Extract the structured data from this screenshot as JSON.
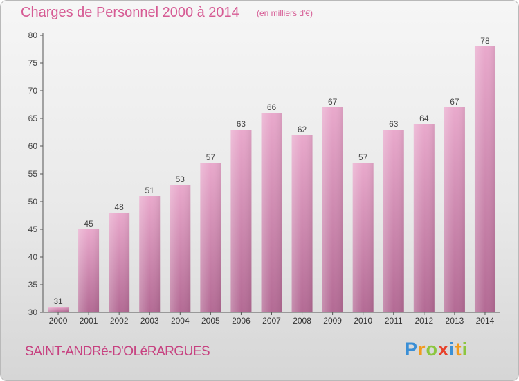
{
  "chart_data": {
    "type": "bar",
    "title": "Charges de Personnel 2000 à 2014",
    "subtitle": "(en milliers d'€)",
    "categories": [
      "2000",
      "2001",
      "2002",
      "2003",
      "2004",
      "2005",
      "2006",
      "2007",
      "2008",
      "2009",
      "2010",
      "2011",
      "2012",
      "2013",
      "2014"
    ],
    "values": [
      31,
      45,
      48,
      51,
      53,
      57,
      63,
      66,
      62,
      67,
      57,
      63,
      64,
      67,
      78
    ],
    "ylim": [
      30,
      80
    ],
    "yticks": [
      30,
      35,
      40,
      45,
      50,
      55,
      60,
      65,
      70,
      75,
      80
    ],
    "grid": false,
    "bar_color_top": "#e9a9cc",
    "bar_color_bottom": "#b36a94"
  },
  "footer": {
    "commune": "SAINT-ANDRé-D'OLéRARGUES",
    "logo_letters": [
      "P",
      "r",
      "o",
      "x",
      "i",
      "t",
      "i"
    ],
    "logo_colors": [
      "#3a8fd6",
      "#f29a1d",
      "#8cc63f",
      "#e8402a",
      "#3a8fd6",
      "#f29a1d",
      "#8cc63f"
    ]
  }
}
